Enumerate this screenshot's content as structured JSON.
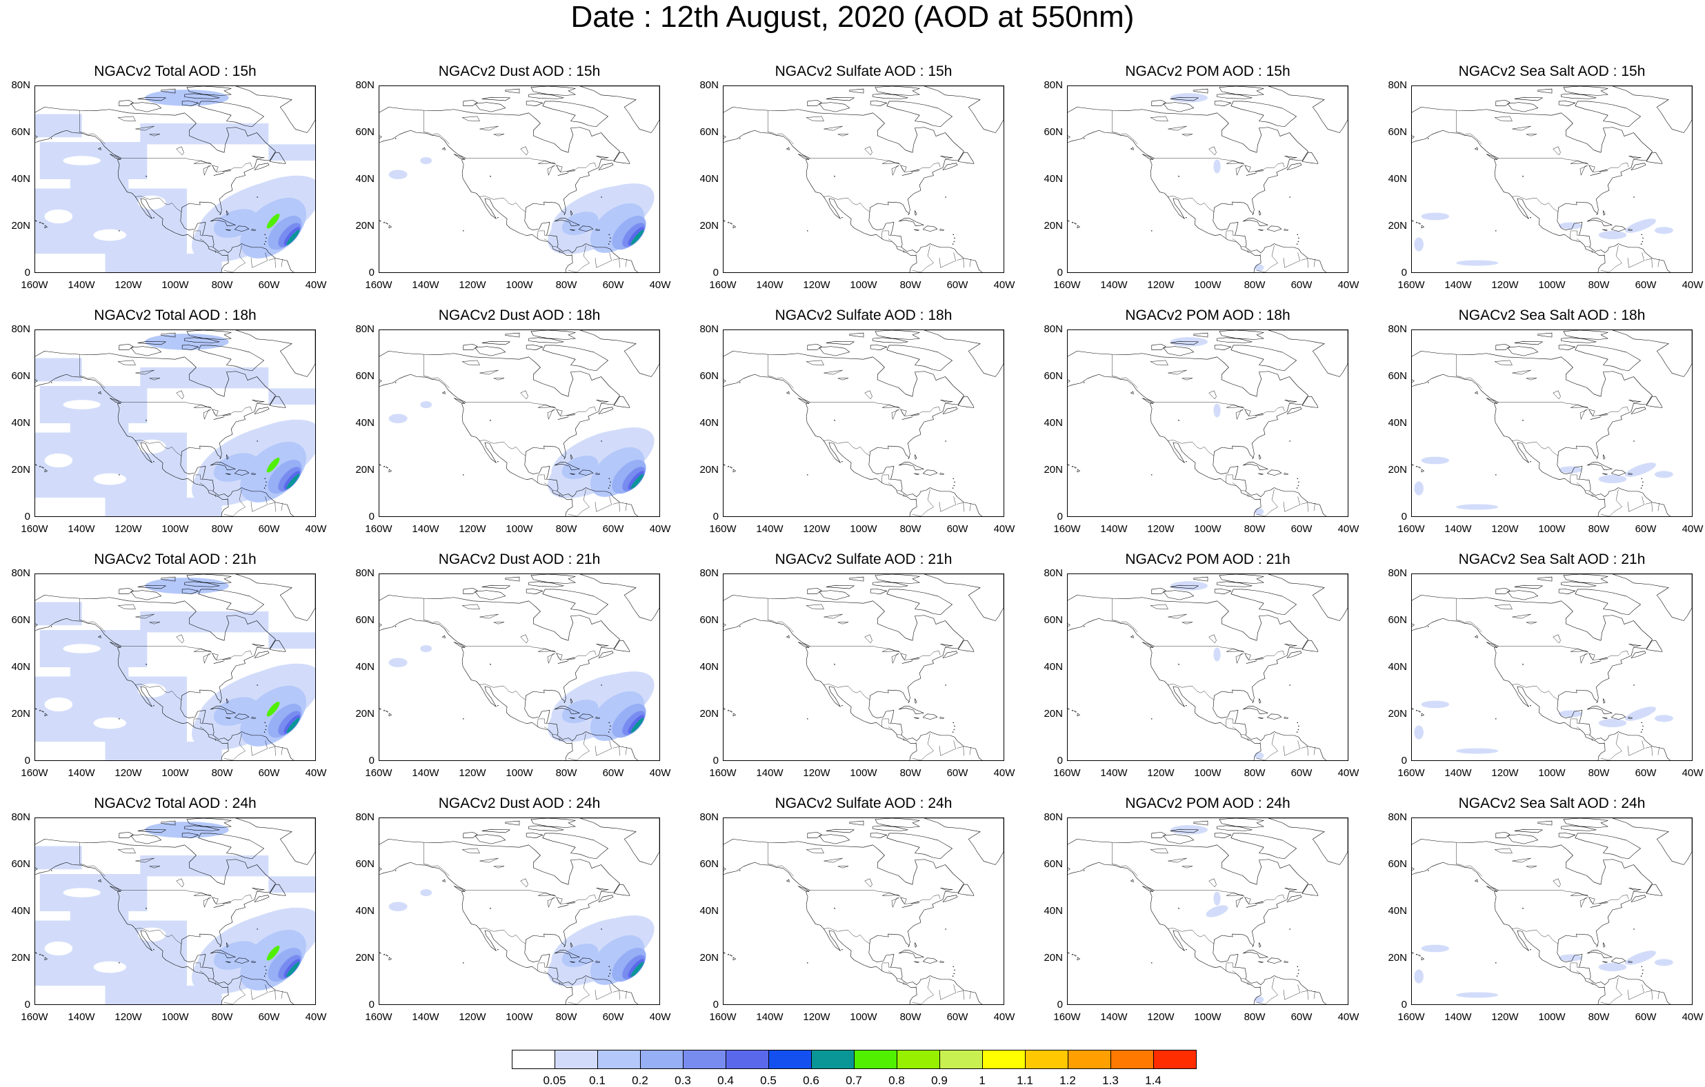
{
  "figure": {
    "title": "Date : 12th August, 2020 (AOD at 550nm)"
  },
  "panel_titles": [
    [
      "NGACv2 Total AOD : 15h",
      "NGACv2 Dust AOD : 15h",
      "NGACv2 Sulfate AOD : 15h",
      "NGACv2 POM AOD : 15h",
      "NGACv2 Sea Salt AOD : 15h"
    ],
    [
      "NGACv2 Total AOD : 18h",
      "NGACv2 Dust AOD : 18h",
      "NGACv2 Sulfate AOD : 18h",
      "NGACv2 POM AOD : 18h",
      "NGACv2 Sea Salt AOD : 18h"
    ],
    [
      "NGACv2 Total AOD : 21h",
      "NGACv2 Dust AOD : 21h",
      "NGACv2 Sulfate AOD : 21h",
      "NGACv2 POM AOD : 21h",
      "NGACv2 Sea Salt AOD : 21h"
    ],
    [
      "NGACv2 Total AOD : 24h",
      "NGACv2 Dust AOD : 24h",
      "NGACv2 Sulfate AOD : 24h",
      "NGACv2 POM AOD : 24h",
      "NGACv2 Sea Salt  AOD : 24h"
    ]
  ],
  "axes": {
    "lat_ticks": [
      "80N",
      "60N",
      "40N",
      "20N",
      "0"
    ],
    "lon_ticks": [
      "160W",
      "140W",
      "120W",
      "100W",
      "80W",
      "60W",
      "40W"
    ]
  },
  "colorbar": {
    "colors": [
      "#ffffff",
      "#d2dcfa",
      "#b4c8fa",
      "#96aff5",
      "#788cf0",
      "#5a69eb",
      "#1450f0",
      "#0a9696",
      "#50f000",
      "#96f000",
      "#c8f050",
      "#ffff00",
      "#ffc800",
      "#ffa000",
      "#ff7800",
      "#ff2d00"
    ],
    "labels": [
      "0.05",
      "0.1",
      "0.2",
      "0.3",
      "0.4",
      "0.5",
      "0.6",
      "0.7",
      "0.8",
      "0.9",
      "1",
      "1.1",
      "1.2",
      "1.3",
      "1.4"
    ]
  }
}
